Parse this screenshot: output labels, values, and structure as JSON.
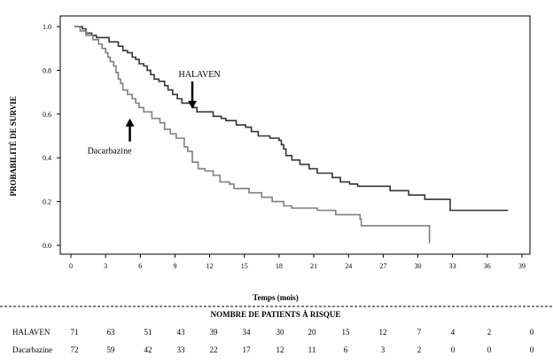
{
  "chart_data": {
    "type": "line",
    "title": "",
    "xlabel": "Temps (mois)",
    "ylabel": "PROBABILITÉ DE SURVIE",
    "xlim": [
      0,
      39
    ],
    "ylim": [
      0.0,
      1.0
    ],
    "xticks": [
      0,
      3,
      6,
      9,
      12,
      15,
      18,
      21,
      24,
      27,
      30,
      33,
      36,
      39
    ],
    "yticks": [
      0.0,
      0.2,
      0.4,
      0.6,
      0.8,
      1.0
    ],
    "ytick_labels": [
      "0.0",
      "0.2",
      "0.4",
      "0.6",
      "0.8",
      "1.0"
    ],
    "grid": false,
    "series": [
      {
        "name": "HALAVEN",
        "color": "#333333",
        "steps": [
          [
            0.3,
            1.0
          ],
          [
            1.0,
            0.99
          ],
          [
            1.3,
            0.97
          ],
          [
            1.8,
            0.96
          ],
          [
            2.2,
            0.95
          ],
          [
            3.3,
            0.93
          ],
          [
            4.1,
            0.91
          ],
          [
            4.5,
            0.89
          ],
          [
            4.9,
            0.88
          ],
          [
            5.3,
            0.86
          ],
          [
            5.6,
            0.85
          ],
          [
            5.9,
            0.83
          ],
          [
            6.3,
            0.82
          ],
          [
            6.6,
            0.8
          ],
          [
            6.9,
            0.78
          ],
          [
            7.2,
            0.76
          ],
          [
            7.6,
            0.75
          ],
          [
            8.1,
            0.73
          ],
          [
            8.4,
            0.71
          ],
          [
            8.8,
            0.69
          ],
          [
            9.2,
            0.67
          ],
          [
            9.6,
            0.65
          ],
          [
            10.6,
            0.63
          ],
          [
            10.9,
            0.61
          ],
          [
            12.3,
            0.59
          ],
          [
            13.0,
            0.58
          ],
          [
            13.4,
            0.57
          ],
          [
            14.3,
            0.55
          ],
          [
            15.1,
            0.54
          ],
          [
            15.6,
            0.52
          ],
          [
            16.2,
            0.5
          ],
          [
            17.2,
            0.49
          ],
          [
            18.0,
            0.48
          ],
          [
            18.2,
            0.46
          ],
          [
            18.4,
            0.44
          ],
          [
            18.6,
            0.41
          ],
          [
            19.1,
            0.39
          ],
          [
            19.8,
            0.37
          ],
          [
            20.6,
            0.35
          ],
          [
            21.3,
            0.33
          ],
          [
            22.6,
            0.31
          ],
          [
            23.3,
            0.29
          ],
          [
            24.1,
            0.28
          ],
          [
            24.8,
            0.27
          ],
          [
            27.6,
            0.25
          ],
          [
            29.2,
            0.23
          ],
          [
            30.6,
            0.21
          ],
          [
            32.8,
            0.16
          ],
          [
            37.8,
            0.16
          ]
        ]
      },
      {
        "name": "Dacarbazine",
        "color": "#7f7f7f",
        "steps": [
          [
            0.3,
            1.0
          ],
          [
            0.8,
            0.98
          ],
          [
            1.3,
            0.96
          ],
          [
            1.9,
            0.94
          ],
          [
            2.4,
            0.92
          ],
          [
            2.7,
            0.9
          ],
          [
            3.0,
            0.88
          ],
          [
            3.2,
            0.86
          ],
          [
            3.4,
            0.84
          ],
          [
            3.7,
            0.82
          ],
          [
            3.9,
            0.79
          ],
          [
            4.1,
            0.76
          ],
          [
            4.3,
            0.74
          ],
          [
            4.5,
            0.71
          ],
          [
            4.9,
            0.69
          ],
          [
            5.3,
            0.67
          ],
          [
            5.6,
            0.65
          ],
          [
            5.9,
            0.63
          ],
          [
            6.3,
            0.61
          ],
          [
            7.0,
            0.58
          ],
          [
            7.7,
            0.56
          ],
          [
            8.1,
            0.53
          ],
          [
            8.6,
            0.51
          ],
          [
            9.1,
            0.49
          ],
          [
            9.8,
            0.45
          ],
          [
            10.1,
            0.43
          ],
          [
            10.5,
            0.38
          ],
          [
            11.0,
            0.35
          ],
          [
            11.6,
            0.34
          ],
          [
            12.3,
            0.32
          ],
          [
            12.9,
            0.29
          ],
          [
            13.7,
            0.28
          ],
          [
            14.1,
            0.26
          ],
          [
            15.4,
            0.24
          ],
          [
            16.5,
            0.22
          ],
          [
            17.4,
            0.2
          ],
          [
            18.4,
            0.18
          ],
          [
            19.1,
            0.17
          ],
          [
            21.3,
            0.16
          ],
          [
            22.9,
            0.14
          ],
          [
            25.0,
            0.12
          ],
          [
            25.1,
            0.09
          ],
          [
            30.9,
            0.09
          ],
          [
            31.0,
            0.01
          ]
        ]
      }
    ],
    "annotations": [
      {
        "text": "HALAVEN",
        "target_x": 10.5,
        "target_y": 0.62
      },
      {
        "text": "Dacarbazine",
        "target_x": 5.1,
        "target_y": 0.58
      }
    ]
  },
  "risk_table": {
    "title": "NOMBRE DE PATIENTS À RISQUE",
    "rows": [
      {
        "label": "HALAVEN",
        "values": [
          "71",
          "63",
          "51",
          "43",
          "39",
          "34",
          "30",
          "20",
          "15",
          "12",
          "7",
          "4",
          "2",
          "0"
        ]
      },
      {
        "label": "Dacarbazine",
        "values": [
          "72",
          "59",
          "42",
          "33",
          "22",
          "17",
          "12",
          "11",
          "6",
          "3",
          "2",
          "0",
          "0",
          "0"
        ]
      }
    ]
  }
}
